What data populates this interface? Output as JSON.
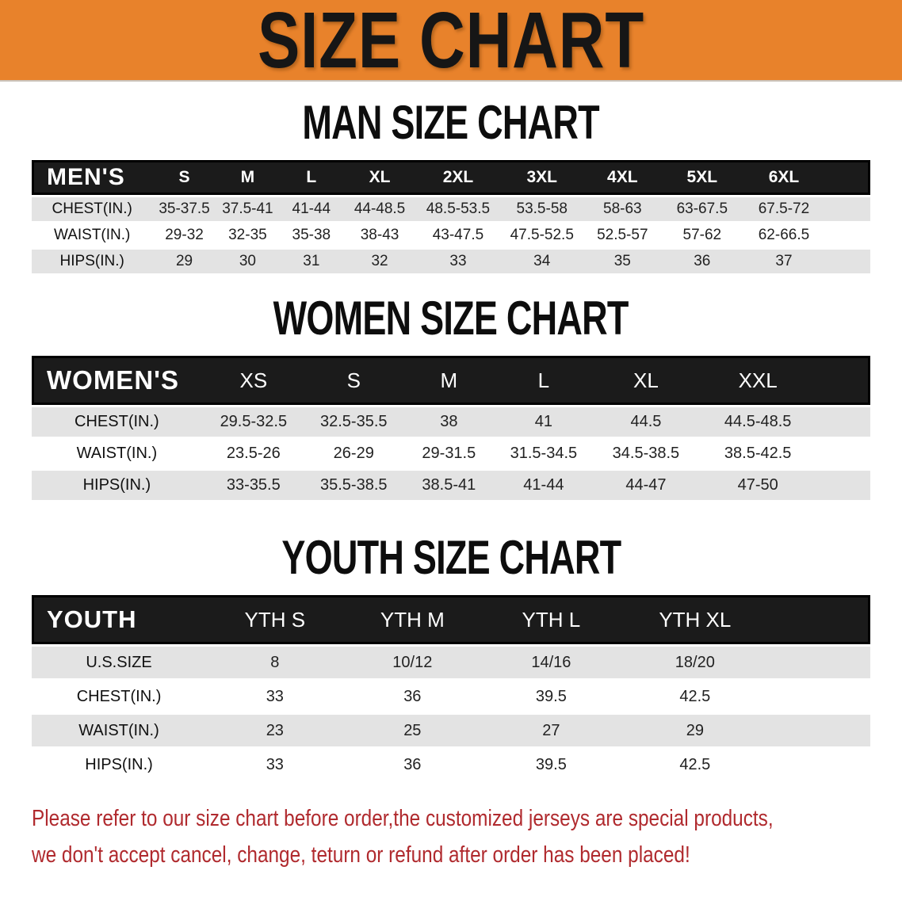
{
  "banner": {
    "title": "SIZE CHART"
  },
  "sections": {
    "men": {
      "heading": "MAN SIZE CHART",
      "table": {
        "header_label": "MEN'S",
        "sizes": [
          "S",
          "M",
          "L",
          "XL",
          "2XL",
          "3XL",
          "4XL",
          "5XL",
          "6XL"
        ],
        "rows": [
          {
            "label": "CHEST(IN.)",
            "values": [
              "35-37.5",
              "37.5-41",
              "41-44",
              "44-48.5",
              "48.5-53.5",
              "53.5-58",
              "58-63",
              "63-67.5",
              "67.5-72"
            ]
          },
          {
            "label": "WAIST(IN.)",
            "values": [
              "29-32",
              "32-35",
              "35-38",
              "38-43",
              "43-47.5",
              "47.5-52.5",
              "52.5-57",
              "57-62",
              "62-66.5"
            ]
          },
          {
            "label": "HIPS(IN.)",
            "values": [
              "29",
              "30",
              "31",
              "32",
              "33",
              "34",
              "35",
              "36",
              "37"
            ]
          }
        ]
      }
    },
    "women": {
      "heading": "WOMEN SIZE CHART",
      "table": {
        "header_label": "WOMEN'S",
        "sizes": [
          "XS",
          "S",
          "M",
          "L",
          "XL",
          "XXL"
        ],
        "rows": [
          {
            "label": "CHEST(IN.)",
            "values": [
              "29.5-32.5",
              "32.5-35.5",
              "38",
              "41",
              "44.5",
              "44.5-48.5"
            ]
          },
          {
            "label": "WAIST(IN.)",
            "values": [
              "23.5-26",
              "26-29",
              "29-31.5",
              "31.5-34.5",
              "34.5-38.5",
              "38.5-42.5"
            ]
          },
          {
            "label": "HIPS(IN.)",
            "values": [
              "33-35.5",
              "35.5-38.5",
              "38.5-41",
              "41-44",
              "44-47",
              "47-50"
            ]
          }
        ]
      }
    },
    "youth": {
      "heading": "YOUTH SIZE CHART",
      "table": {
        "header_label": "YOUTH",
        "sizes": [
          "YTH S",
          "YTH M",
          "YTH L",
          "YTH XL"
        ],
        "rows": [
          {
            "label": "U.S.SIZE",
            "values": [
              "8",
              "10/12",
              "14/16",
              "18/20"
            ]
          },
          {
            "label": "CHEST(IN.)",
            "values": [
              "33",
              "36",
              "39.5",
              "42.5"
            ]
          },
          {
            "label": "WAIST(IN.)",
            "values": [
              "23",
              "25",
              "27",
              "29"
            ]
          },
          {
            "label": "HIPS(IN.)",
            "values": [
              "33",
              "36",
              "39.5",
              "42.5"
            ]
          }
        ]
      }
    }
  },
  "disclaimer": {
    "line1": "Please refer to our size chart before order,the customized jerseys are special products,",
    "line2": "we don't accept cancel, change, teturn or refund after order has been placed!"
  },
  "colors": {
    "banner_orange": "#e8822b",
    "header_black": "#1b1b1b",
    "row_gray": "#e3e3e3",
    "disclaimer_red": "#b02a2e"
  }
}
